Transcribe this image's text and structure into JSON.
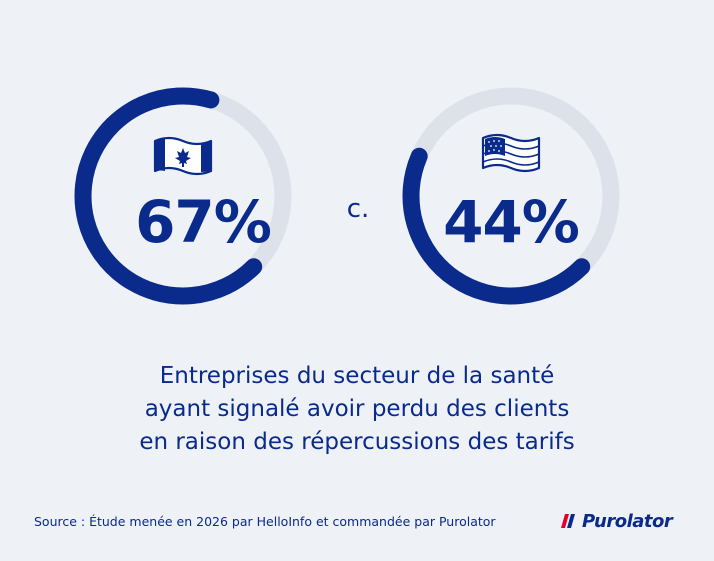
{
  "chart_data": {
    "type": "gauge",
    "max": 100,
    "series": [
      {
        "value": 67,
        "label": "67%",
        "icon": "canada-flag-icon"
      },
      {
        "value": 44,
        "label": "44%",
        "icon": "usa-flag-icon"
      }
    ],
    "separator": "c.",
    "caption": [
      "Entreprises du secteur de la santé",
      "ayant signalé avoir perdu des clients",
      "en raison des répercussions des tarifs"
    ]
  },
  "footer": {
    "source": "Source : Étude menée en 2026 par HelloInfo et commandée par Purolator",
    "brand": "Purolator"
  },
  "colors": {
    "accent": "#0a2a8c",
    "track": "#dde2ea",
    "background": "#eef2f7",
    "brand_red": "#e4002b"
  }
}
